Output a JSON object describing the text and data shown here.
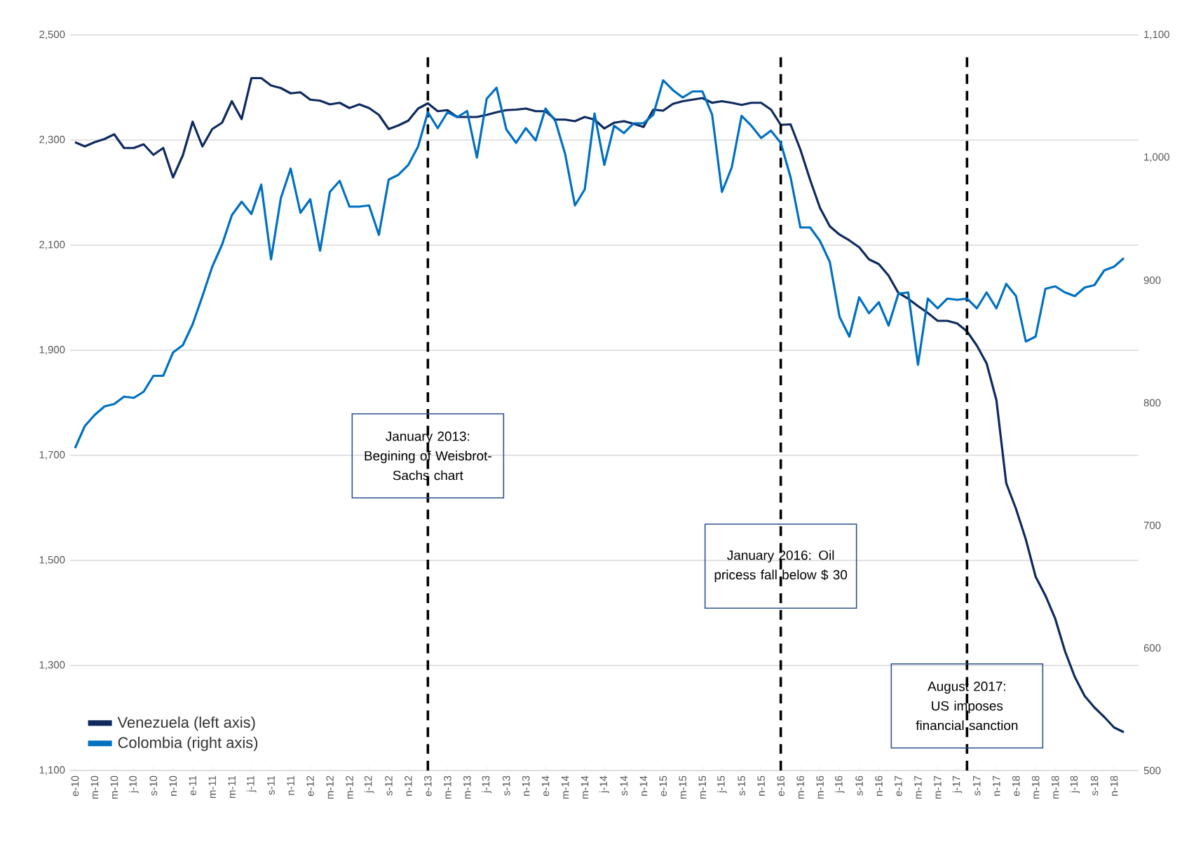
{
  "chart_data": {
    "type": "line",
    "x": [
      "2010-01",
      "2010-02",
      "2010-03",
      "2010-04",
      "2010-05",
      "2010-06",
      "2010-07",
      "2010-08",
      "2010-09",
      "2010-10",
      "2010-11",
      "2010-12",
      "2011-01",
      "2011-02",
      "2011-03",
      "2011-04",
      "2011-05",
      "2011-06",
      "2011-07",
      "2011-08",
      "2011-09",
      "2011-10",
      "2011-11",
      "2011-12",
      "2012-01",
      "2012-02",
      "2012-03",
      "2012-04",
      "2012-05",
      "2012-06",
      "2012-07",
      "2012-08",
      "2012-09",
      "2012-10",
      "2012-11",
      "2012-12",
      "2013-01",
      "2013-02",
      "2013-03",
      "2013-04",
      "2013-05",
      "2013-06",
      "2013-07",
      "2013-08",
      "2013-09",
      "2013-10",
      "2013-11",
      "2013-12",
      "2014-01",
      "2014-02",
      "2014-03",
      "2014-04",
      "2014-05",
      "2014-06",
      "2014-07",
      "2014-08",
      "2014-09",
      "2014-10",
      "2014-11",
      "2014-12",
      "2015-01",
      "2015-02",
      "2015-03",
      "2015-04",
      "2015-05",
      "2015-06",
      "2015-07",
      "2015-08",
      "2015-09",
      "2015-10",
      "2015-11",
      "2015-12",
      "2016-01",
      "2016-02",
      "2016-03",
      "2016-04",
      "2016-05",
      "2016-06",
      "2016-07",
      "2016-08",
      "2016-09",
      "2016-10",
      "2016-11",
      "2016-12",
      "2017-01",
      "2017-02",
      "2017-03",
      "2017-04",
      "2017-05",
      "2017-06",
      "2017-07",
      "2017-08",
      "2017-09",
      "2017-10",
      "2017-11",
      "2017-12",
      "2018-01",
      "2018-02",
      "2018-03",
      "2018-04",
      "2018-05",
      "2018-06",
      "2018-07",
      "2018-08",
      "2018-09",
      "2018-10",
      "2018-11",
      "2018-12"
    ],
    "series": [
      {
        "name": "Venezuela (left axis)",
        "color": "#0e2a5e",
        "values": [
          2296,
          2288,
          2296,
          2302,
          2311,
          2285,
          2285,
          2292,
          2272,
          2285,
          2229,
          2271,
          2335,
          2288,
          2321,
          2333,
          2374,
          2340,
          2418,
          2418,
          2404,
          2399,
          2389,
          2391,
          2377,
          2375,
          2368,
          2371,
          2361,
          2368,
          2361,
          2348,
          2321,
          2328,
          2337,
          2360,
          2370,
          2355,
          2357,
          2344,
          2344,
          2344,
          2348,
          2353,
          2357,
          2358,
          2360,
          2355,
          2355,
          2339,
          2339,
          2336,
          2344,
          2339,
          2322,
          2333,
          2336,
          2331,
          2325,
          2358,
          2356,
          2369,
          2374,
          2377,
          2380,
          2371,
          2374,
          2371,
          2367,
          2371,
          2371,
          2358,
          2329,
          2330,
          2282,
          2224,
          2171,
          2136,
          2120,
          2109,
          2096,
          2073,
          2064,
          2042,
          2009,
          1998,
          1984,
          1971,
          1956,
          1956,
          1951,
          1936,
          1909,
          1875,
          1805,
          1647,
          1598,
          1540,
          1469,
          1433,
          1389,
          1327,
          1278,
          1242,
          1220,
          1202,
          1182,
          1173
        ]
      },
      {
        "name": "Colombia (right axis)",
        "color": "#0070c0",
        "axis": "y2",
        "values": [
          763,
          781,
          790,
          797,
          799,
          805,
          804,
          809,
          822,
          822,
          841,
          847,
          864,
          887,
          911,
          929,
          953,
          964,
          954,
          978,
          917,
          967,
          991,
          955,
          966,
          924,
          972,
          981,
          960,
          960,
          961,
          937,
          982,
          986,
          994,
          1009,
          1037,
          1024,
          1037,
          1033,
          1038,
          1000,
          1048,
          1057,
          1023,
          1012,
          1024,
          1014,
          1040,
          1030,
          1003,
          961,
          974,
          1036,
          994,
          1026,
          1020,
          1028,
          1028,
          1035,
          1063,
          1055,
          1049,
          1054,
          1054,
          1035,
          972,
          992,
          1034,
          1026,
          1016,
          1022,
          1012,
          984,
          943,
          943,
          932,
          915,
          870,
          854,
          886,
          873,
          882,
          863,
          889,
          890,
          831,
          885,
          877,
          885,
          884,
          885,
          877,
          890,
          877,
          897,
          887,
          850,
          854,
          893,
          895,
          890,
          887,
          894,
          896,
          908,
          911,
          918
        ]
      }
    ],
    "xlim": [
      "2009-12-16",
      "2019-01-16"
    ],
    "xticks": [
      {
        "value": "2010-01",
        "label": "e-10"
      },
      {
        "value": "2010-03",
        "label": "m-10"
      },
      {
        "value": "2010-05",
        "label": "m-10"
      },
      {
        "value": "2010-07",
        "label": "j-10"
      },
      {
        "value": "2010-09",
        "label": "s-10"
      },
      {
        "value": "2010-11",
        "label": "n-10"
      },
      {
        "value": "2011-01",
        "label": "e-11"
      },
      {
        "value": "2011-03",
        "label": "m-11"
      },
      {
        "value": "2011-05",
        "label": "m-11"
      },
      {
        "value": "2011-07",
        "label": "j-11"
      },
      {
        "value": "2011-09",
        "label": "s-11"
      },
      {
        "value": "2011-11",
        "label": "n-11"
      },
      {
        "value": "2012-01",
        "label": "e-12"
      },
      {
        "value": "2012-03",
        "label": "m-12"
      },
      {
        "value": "2012-05",
        "label": "m-12"
      },
      {
        "value": "2012-07",
        "label": "j-12"
      },
      {
        "value": "2012-09",
        "label": "s-12"
      },
      {
        "value": "2012-11",
        "label": "n-12"
      },
      {
        "value": "2013-01",
        "label": "e-13"
      },
      {
        "value": "2013-03",
        "label": "m-13"
      },
      {
        "value": "2013-05",
        "label": "m-13"
      },
      {
        "value": "2013-07",
        "label": "j-13"
      },
      {
        "value": "2013-09",
        "label": "s-13"
      },
      {
        "value": "2013-11",
        "label": "n-13"
      },
      {
        "value": "2014-01",
        "label": "e-14"
      },
      {
        "value": "2014-03",
        "label": "m-14"
      },
      {
        "value": "2014-05",
        "label": "m-14"
      },
      {
        "value": "2014-07",
        "label": "j-14"
      },
      {
        "value": "2014-09",
        "label": "s-14"
      },
      {
        "value": "2014-11",
        "label": "n-14"
      },
      {
        "value": "2015-01",
        "label": "e-15"
      },
      {
        "value": "2015-03",
        "label": "m-15"
      },
      {
        "value": "2015-05",
        "label": "m-15"
      },
      {
        "value": "2015-07",
        "label": "j-15"
      },
      {
        "value": "2015-09",
        "label": "s-15"
      },
      {
        "value": "2015-11",
        "label": "n-15"
      },
      {
        "value": "2016-01",
        "label": "e-16"
      },
      {
        "value": "2016-03",
        "label": "m-16"
      },
      {
        "value": "2016-05",
        "label": "m-16"
      },
      {
        "value": "2016-07",
        "label": "j-16"
      },
      {
        "value": "2016-09",
        "label": "s-16"
      },
      {
        "value": "2016-11",
        "label": "n-16"
      },
      {
        "value": "2017-01",
        "label": "e-17"
      },
      {
        "value": "2017-03",
        "label": "m-17"
      },
      {
        "value": "2017-05",
        "label": "m-17"
      },
      {
        "value": "2017-07",
        "label": "j-17"
      },
      {
        "value": "2017-09",
        "label": "s-17"
      },
      {
        "value": "2017-11",
        "label": "n-17"
      },
      {
        "value": "2018-01",
        "label": "e-18"
      },
      {
        "value": "2018-03",
        "label": "m-18"
      },
      {
        "value": "2018-05",
        "label": "m-18"
      },
      {
        "value": "2018-07",
        "label": "j-18"
      },
      {
        "value": "2018-09",
        "label": "s-18"
      },
      {
        "value": "2018-11",
        "label": "n-18"
      }
    ],
    "ylim": [
      1100,
      2500
    ],
    "yticks": [
      {
        "value": 1100,
        "label": "1,100"
      },
      {
        "value": 1300,
        "label": "1,300"
      },
      {
        "value": 1500,
        "label": "1,500"
      },
      {
        "value": 1700,
        "label": "1,700"
      },
      {
        "value": 1900,
        "label": "1,900"
      },
      {
        "value": 2100,
        "label": "2,100"
      },
      {
        "value": 2300,
        "label": "2,300"
      },
      {
        "value": 2500,
        "label": "2,500"
      }
    ],
    "y2lim": [
      500,
      1100
    ],
    "y2ticks": [
      500,
      600,
      700,
      800,
      900,
      {
        "value": 1000,
        "label": "1,000"
      },
      {
        "value": 1100,
        "label": "1,100"
      }
    ],
    "ref_lines": [
      {
        "axis": "x",
        "value": "2013-01",
        "label": "January 2013: Begining of Weisbrot-Sachs chart",
        "color": "#000000",
        "line_style": "dashed"
      },
      {
        "axis": "x",
        "value": "2016-01",
        "label": "January 2016: Oil pricess fall below $ 30",
        "color": "#000000",
        "line_style": "dashed"
      },
      {
        "axis": "x",
        "value": "2017-08",
        "label": "August 2017: US imposes financial sanction",
        "color": "#000000",
        "line_style": "dashed"
      }
    ],
    "grid": "y",
    "legend": "bottom left"
  }
}
